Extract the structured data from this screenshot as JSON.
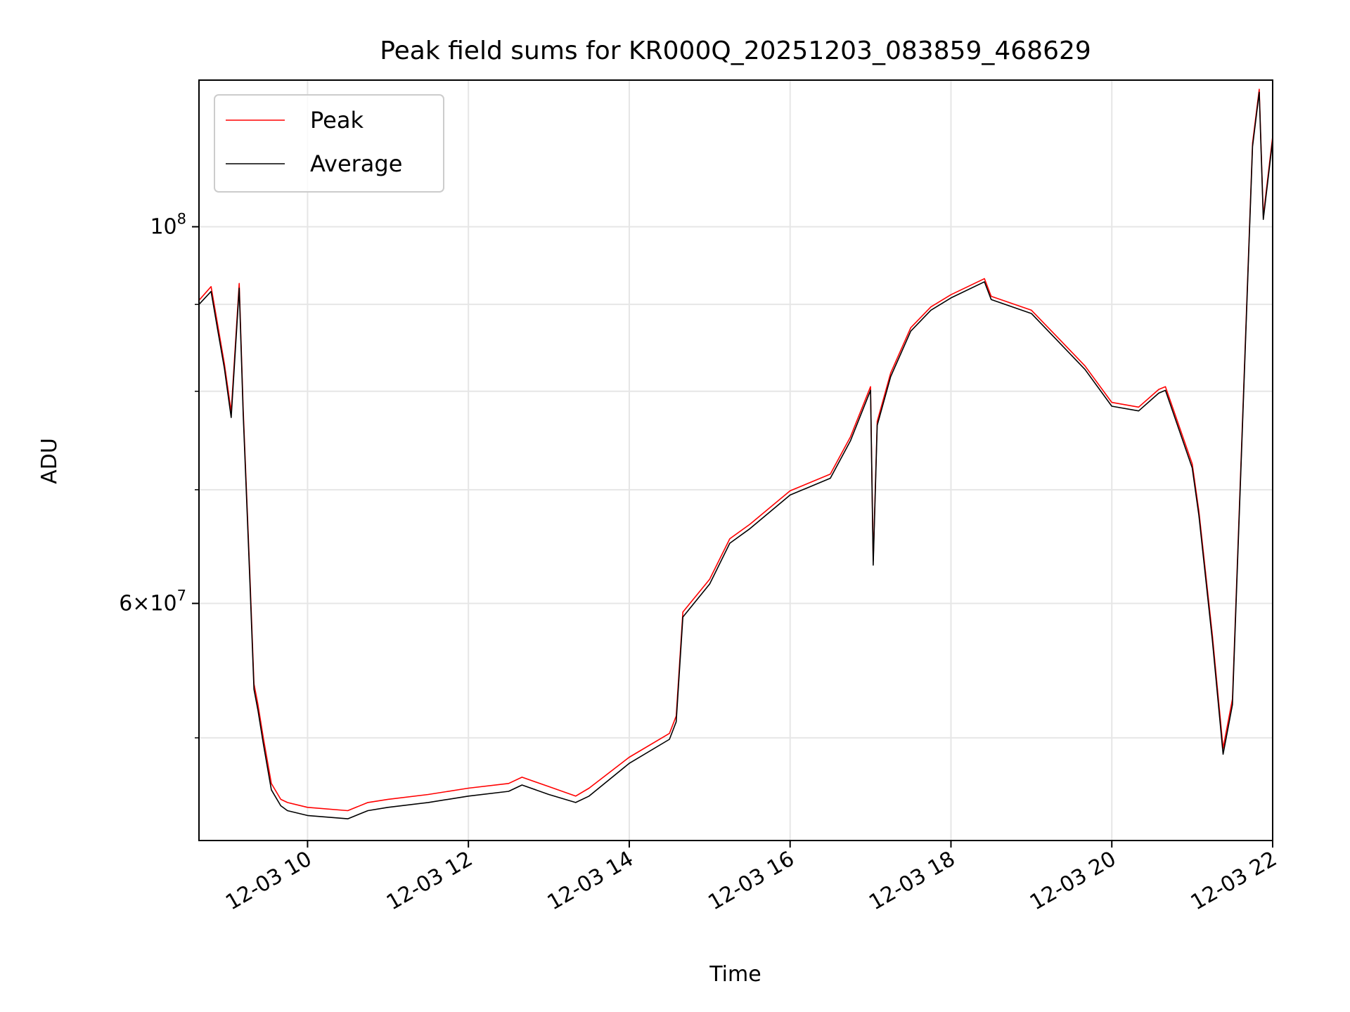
{
  "chart_data": {
    "type": "line",
    "title": "Peak field sums for KR000Q_20251203_083859_468629",
    "xlabel": "Time",
    "ylabel": "ADU",
    "x_axis": "time",
    "y_scale": "log",
    "xlim": [
      "2025-12-03 08:39",
      "2025-12-03 22:00"
    ],
    "ylim": [
      43500000,
      122000000
    ],
    "grid": true,
    "legend": {
      "position": "upper-left",
      "entries": [
        "Peak",
        "Average"
      ]
    },
    "x_ticks": [
      {
        "t": "2025-12-03 10:00",
        "label": "12-03 10"
      },
      {
        "t": "2025-12-03 12:00",
        "label": "12-03 12"
      },
      {
        "t": "2025-12-03 14:00",
        "label": "12-03 14"
      },
      {
        "t": "2025-12-03 16:00",
        "label": "12-03 16"
      },
      {
        "t": "2025-12-03 18:00",
        "label": "12-03 18"
      },
      {
        "t": "2025-12-03 20:00",
        "label": "12-03 20"
      },
      {
        "t": "2025-12-03 22:00",
        "label": "12-03 22"
      }
    ],
    "y_major_ticks": [
      {
        "value": 60000000,
        "base": "6",
        "exp": "7"
      },
      {
        "value": 100000000,
        "base": "10",
        "exp": "8"
      }
    ],
    "y_minor_ticks": [
      50000000,
      70000000,
      80000000,
      90000000
    ],
    "series": [
      {
        "name": "Peak",
        "color": "#ff0000",
        "x": [
          "2025-12-03 08:39",
          "2025-12-03 08:48",
          "2025-12-03 08:53",
          "2025-12-03 08:58",
          "2025-12-03 09:03",
          "2025-12-03 09:09",
          "2025-12-03 09:12",
          "2025-12-03 09:15",
          "2025-12-03 09:17",
          "2025-12-03 09:20",
          "2025-12-03 09:23",
          "2025-12-03 09:27",
          "2025-12-03 09:33",
          "2025-12-03 09:40",
          "2025-12-03 09:45",
          "2025-12-03 10:00",
          "2025-12-03 10:30",
          "2025-12-03 10:45",
          "2025-12-03 11:00",
          "2025-12-03 11:30",
          "2025-12-03 12:00",
          "2025-12-03 12:30",
          "2025-12-03 12:40",
          "2025-12-03 13:00",
          "2025-12-03 13:20",
          "2025-12-03 13:30",
          "2025-12-03 14:00",
          "2025-12-03 14:30",
          "2025-12-03 14:35",
          "2025-12-03 14:40",
          "2025-12-03 15:00",
          "2025-12-03 15:15",
          "2025-12-03 15:30",
          "2025-12-03 16:00",
          "2025-12-03 16:30",
          "2025-12-03 16:45",
          "2025-12-03 16:55",
          "2025-12-03 17:00",
          "2025-12-03 17:02",
          "2025-12-03 17:05",
          "2025-12-03 17:15",
          "2025-12-03 17:30",
          "2025-12-03 17:45",
          "2025-12-03 18:00",
          "2025-12-03 18:25",
          "2025-12-03 18:30",
          "2025-12-03 19:00",
          "2025-12-03 19:20",
          "2025-12-03 19:40",
          "2025-12-03 20:00",
          "2025-12-03 20:20",
          "2025-12-03 20:35",
          "2025-12-03 20:40",
          "2025-12-03 21:00",
          "2025-12-03 21:05",
          "2025-12-03 21:15",
          "2025-12-03 21:23",
          "2025-12-03 21:30",
          "2025-12-03 21:45",
          "2025-12-03 21:50",
          "2025-12-03 21:53",
          "2025-12-03 22:00"
        ],
        "values": [
          90500000,
          92200000,
          87500000,
          83000000,
          77800000,
          92600000,
          78000000,
          68200000,
          62300000,
          53800000,
          52300000,
          50000000,
          47000000,
          46000000,
          45800000,
          45500000,
          45300000,
          45800000,
          46000000,
          46300000,
          46700000,
          47000000,
          47400000,
          46800000,
          46200000,
          46700000,
          48700000,
          50300000,
          51500000,
          59300000,
          62000000,
          65500000,
          66800000,
          69900000,
          71500000,
          75200000,
          78700000,
          80500000,
          63600000,
          76800000,
          82000000,
          87200000,
          89700000,
          91200000,
          93200000,
          91000000,
          89300000,
          86000000,
          82800000,
          78800000,
          78300000,
          80200000,
          80500000,
          72500000,
          68000000,
          57500000,
          49300000,
          52700000,
          112000000,
          120500000,
          101500000,
          113000000
        ]
      },
      {
        "name": "Average",
        "color": "#000000",
        "x": [
          "2025-12-03 08:39",
          "2025-12-03 08:48",
          "2025-12-03 08:53",
          "2025-12-03 08:58",
          "2025-12-03 09:03",
          "2025-12-03 09:09",
          "2025-12-03 09:12",
          "2025-12-03 09:15",
          "2025-12-03 09:17",
          "2025-12-03 09:20",
          "2025-12-03 09:23",
          "2025-12-03 09:27",
          "2025-12-03 09:33",
          "2025-12-03 09:40",
          "2025-12-03 09:45",
          "2025-12-03 10:00",
          "2025-12-03 10:30",
          "2025-12-03 10:45",
          "2025-12-03 11:00",
          "2025-12-03 11:30",
          "2025-12-03 12:00",
          "2025-12-03 12:30",
          "2025-12-03 12:40",
          "2025-12-03 13:00",
          "2025-12-03 13:20",
          "2025-12-03 13:30",
          "2025-12-03 14:00",
          "2025-12-03 14:30",
          "2025-12-03 14:35",
          "2025-12-03 14:40",
          "2025-12-03 15:00",
          "2025-12-03 15:15",
          "2025-12-03 15:30",
          "2025-12-03 16:00",
          "2025-12-03 16:30",
          "2025-12-03 16:45",
          "2025-12-03 16:55",
          "2025-12-03 17:00",
          "2025-12-03 17:02",
          "2025-12-03 17:05",
          "2025-12-03 17:15",
          "2025-12-03 17:30",
          "2025-12-03 17:45",
          "2025-12-03 18:00",
          "2025-12-03 18:25",
          "2025-12-03 18:30",
          "2025-12-03 19:00",
          "2025-12-03 19:20",
          "2025-12-03 19:40",
          "2025-12-03 20:00",
          "2025-12-03 20:20",
          "2025-12-03 20:35",
          "2025-12-03 20:40",
          "2025-12-03 21:00",
          "2025-12-03 21:05",
          "2025-12-03 21:15",
          "2025-12-03 21:23",
          "2025-12-03 21:30",
          "2025-12-03 21:45",
          "2025-12-03 21:50",
          "2025-12-03 21:53",
          "2025-12-03 22:00"
        ],
        "values": [
          90000000,
          91600000,
          86900000,
          82500000,
          77200000,
          92000000,
          77500000,
          67700000,
          61800000,
          53400000,
          51900000,
          49600000,
          46600000,
          45600000,
          45300000,
          45000000,
          44800000,
          45300000,
          45500000,
          45800000,
          46200000,
          46500000,
          46900000,
          46300000,
          45800000,
          46200000,
          48300000,
          49900000,
          51100000,
          58900000,
          61600000,
          65100000,
          66400000,
          69500000,
          71100000,
          74800000,
          78300000,
          80100000,
          63200000,
          76400000,
          81600000,
          86800000,
          89300000,
          90800000,
          92800000,
          90600000,
          88900000,
          85600000,
          82400000,
          78400000,
          77900000,
          79800000,
          80100000,
          72100000,
          67600000,
          57100000,
          48900000,
          52300000,
          111500000,
          120000000,
          101000000,
          112500000
        ]
      }
    ]
  }
}
